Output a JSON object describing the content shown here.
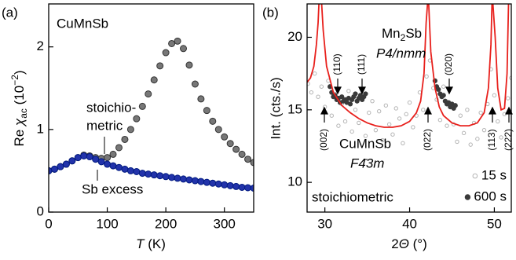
{
  "chart_data": [
    {
      "type": "scatter",
      "panel_label": "(a)",
      "title": "CuMnSb",
      "xlabel": [
        "T",
        " (K)"
      ],
      "ylabel": [
        "Re ",
        "χ",
        "ac",
        " (10",
        "−2",
        ")"
      ],
      "xlim": [
        0,
        350
      ],
      "ylim": [
        0,
        2.52
      ],
      "xticks": [
        0,
        100,
        200,
        300
      ],
      "yticks": [
        0,
        1,
        2
      ],
      "annotations": {
        "stoichiometric": [
          "stoichio-",
          "metric"
        ],
        "sb_excess": "Sb excess"
      },
      "series": [
        {
          "color": "#777777",
          "edge": "#333333",
          "x": [
            0,
            10,
            20,
            30,
            40,
            50,
            60,
            70,
            80,
            90,
            100,
            110,
            120,
            130,
            140,
            150,
            160,
            170,
            180,
            190,
            200,
            210,
            220,
            230,
            240,
            250,
            260,
            270,
            280,
            290,
            300,
            310,
            320,
            330,
            340,
            350
          ],
          "values": [
            0.5,
            0.52,
            0.55,
            0.58,
            0.62,
            0.66,
            0.69,
            0.68,
            0.66,
            0.65,
            0.66,
            0.7,
            0.78,
            0.88,
            1.0,
            1.13,
            1.28,
            1.43,
            1.6,
            1.77,
            1.93,
            2.04,
            2.07,
            1.98,
            1.78,
            1.55,
            1.37,
            1.23,
            1.1,
            1.0,
            0.91,
            0.83,
            0.76,
            0.7,
            0.64,
            0.6
          ]
        },
        {
          "color": "#2233aa",
          "edge": "#001a80",
          "x": [
            0,
            10,
            20,
            30,
            40,
            50,
            60,
            70,
            80,
            90,
            100,
            110,
            120,
            130,
            140,
            150,
            160,
            170,
            180,
            190,
            200,
            210,
            220,
            230,
            240,
            250,
            260,
            270,
            280,
            290,
            300,
            310,
            320,
            330,
            340,
            350
          ],
          "values": [
            0.5,
            0.52,
            0.55,
            0.58,
            0.62,
            0.66,
            0.68,
            0.67,
            0.64,
            0.61,
            0.58,
            0.56,
            0.54,
            0.52,
            0.5,
            0.49,
            0.47,
            0.46,
            0.45,
            0.44,
            0.43,
            0.42,
            0.41,
            0.4,
            0.39,
            0.38,
            0.37,
            0.36,
            0.35,
            0.34,
            0.33,
            0.32,
            0.31,
            0.3,
            0.295,
            0.29
          ]
        }
      ]
    },
    {
      "type": "scatter",
      "panel_label": "(b)",
      "xlabel": [
        "2",
        "Θ",
        " (°)"
      ],
      "ylabel": "Int. (cts./s)",
      "xlim": [
        27.9,
        52.0
      ],
      "ylim": [
        7.95,
        22.3
      ],
      "xticks": [
        30,
        40,
        50
      ],
      "yticks": [
        10,
        15,
        20
      ],
      "annotations": {
        "phase1": [
          "Mn",
          "2",
          "Sb"
        ],
        "phase1_group": "P4/nmm",
        "phase2": "CuMnSb",
        "phase2_group": "F4̄3m",
        "sample": "stoichiometric",
        "reflections": [
          "(002)",
          "(110)",
          "(111)",
          "(020)",
          "(022)",
          "(113)",
          "(222)"
        ]
      },
      "series": [
        {
          "name": "15 s",
          "color": "#b5b5b5",
          "marker": "open",
          "x": [
            28.0,
            28.4,
            28.8,
            29.2,
            29.6,
            30.0,
            30.4,
            30.8,
            31.2,
            31.6,
            32.0,
            32.4,
            32.8,
            33.2,
            33.6,
            34.0,
            34.4,
            34.8,
            35.2,
            35.6,
            36.0,
            36.4,
            36.8,
            37.2,
            37.6,
            38.0,
            38.4,
            38.8,
            39.2,
            39.6,
            40.0,
            40.4,
            40.8,
            41.2,
            41.6,
            42.0,
            42.4,
            42.8,
            43.2,
            43.6,
            44.0,
            44.4,
            44.8,
            45.2,
            45.6,
            46.0,
            46.4,
            46.8,
            47.2,
            47.6,
            48.0,
            48.4,
            48.8,
            49.2,
            49.6,
            50.0,
            50.4,
            50.8,
            51.2,
            51.6,
            52.0
          ],
          "values": [
            16.8,
            16.2,
            17.5,
            15.9,
            16.6,
            15.2,
            17.0,
            14.6,
            16.1,
            13.9,
            15.4,
            14.2,
            16.3,
            13.5,
            15.0,
            14.1,
            16.0,
            13.2,
            14.8,
            15.6,
            13.6,
            14.9,
            12.9,
            15.3,
            14.0,
            13.3,
            15.1,
            14.4,
            12.7,
            14.7,
            15.5,
            13.8,
            14.6,
            16.2,
            15.0,
            17.3,
            18.4,
            16.5,
            15.7,
            14.3,
            16.6,
            13.9,
            15.2,
            14.0,
            12.8,
            14.6,
            13.4,
            15.0,
            12.6,
            14.1,
            13.0,
            14.8,
            13.6,
            15.4,
            17.8,
            16.0,
            14.2,
            13.1,
            14.7,
            15.8,
            17.2
          ]
        },
        {
          "name": "600 s",
          "color": "#3a3a3a",
          "marker": "filled",
          "x": [
            30.6,
            30.8,
            31.0,
            31.2,
            31.4,
            31.6,
            31.8,
            32.0,
            32.2,
            32.4,
            32.6,
            32.8,
            33.0,
            33.2,
            33.4,
            33.6,
            33.8,
            34.0,
            34.2,
            34.4,
            34.6,
            34.8,
            43.0,
            43.2,
            43.4,
            43.6,
            43.8,
            44.0,
            44.2,
            44.4,
            44.6,
            44.8,
            45.0,
            45.2,
            45.4
          ],
          "values": [
            16.6,
            16.2,
            15.9,
            16.0,
            15.7,
            15.8,
            15.5,
            15.9,
            15.6,
            15.7,
            15.5,
            15.8,
            15.4,
            15.7,
            15.9,
            16.1,
            15.6,
            15.8,
            16.0,
            15.7,
            15.9,
            16.1,
            17.0,
            16.6,
            16.4,
            16.1,
            15.9,
            16.0,
            15.6,
            15.4,
            15.5,
            15.2,
            15.4,
            15.1,
            15.3
          ]
        },
        {
          "color": "#e8201c",
          "kind": "line",
          "x": [
            27.9,
            28.3,
            28.7,
            29.0,
            29.2,
            29.35,
            29.55,
            29.8,
            30.2,
            31,
            32,
            33,
            34,
            35,
            36,
            37,
            38,
            39,
            40,
            40.8,
            41.3,
            41.7,
            41.95,
            42.2,
            42.5,
            43,
            43.5,
            44,
            45,
            46,
            47,
            48,
            48.8,
            49.3,
            49.6,
            49.75,
            50.1,
            50.4,
            50.8,
            51.2,
            51.5,
            51.7
          ],
          "values": [
            16.9,
            17.2,
            18,
            19.5,
            21,
            23,
            23,
            20.5,
            18,
            16.2,
            15.3,
            14.8,
            14.4,
            14.1,
            13.9,
            13.8,
            13.8,
            13.9,
            14.2,
            14.8,
            15.6,
            17.5,
            21,
            23,
            19,
            16.5,
            15.2,
            14.6,
            14.1,
            13.9,
            13.9,
            14.1,
            14.8,
            16.5,
            19.5,
            23,
            20,
            16.5,
            15,
            15.1,
            17.5,
            23
          ]
        }
      ]
    }
  ]
}
